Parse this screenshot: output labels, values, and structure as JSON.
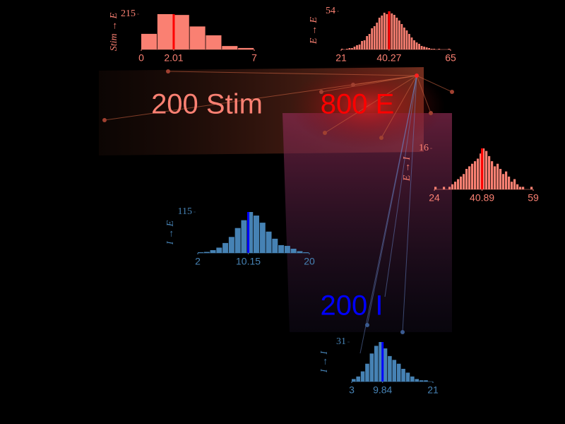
{
  "network": {
    "labels": [
      "200 Stim",
      "800 E",
      "200 I"
    ]
  },
  "chart_data": [
    {
      "type": "histogram",
      "ylabel": "Stim → E",
      "color": "#fa8072",
      "mean_color": "#ff0000",
      "bins": [
        0,
        1,
        2,
        3,
        4,
        5,
        6,
        7
      ],
      "counts": [
        95,
        215,
        210,
        140,
        86,
        21,
        9
      ],
      "mean": 2.01,
      "xlim": [
        0,
        7
      ],
      "xticks": [
        0,
        2.01,
        7
      ],
      "ylim": [
        0,
        215
      ],
      "yticks": [
        215
      ]
    },
    {
      "type": "histogram",
      "ylabel": "E → E",
      "color": "#fa8072",
      "mean_color": "#ff0000",
      "bins": [
        21,
        22,
        23,
        24,
        25,
        26,
        27,
        28,
        29,
        30,
        31,
        32,
        33,
        34,
        35,
        36,
        37,
        38,
        39,
        40,
        41,
        42,
        43,
        44,
        45,
        46,
        47,
        48,
        49,
        50,
        51,
        52,
        53,
        54,
        55,
        56,
        57,
        58,
        59,
        60,
        61,
        62,
        63,
        64,
        65
      ],
      "counts": [
        1,
        0,
        1,
        2,
        2,
        4,
        6,
        7,
        12,
        13,
        19,
        22,
        30,
        33,
        38,
        45,
        48,
        52,
        50,
        54,
        51,
        49,
        45,
        41,
        36,
        31,
        27,
        22,
        17,
        13,
        10,
        8,
        5,
        4,
        3,
        2,
        1,
        1,
        0,
        1,
        0,
        0,
        0,
        1
      ],
      "mean": 40.27,
      "xlim": [
        21,
        65
      ],
      "xticks": [
        21,
        40.27,
        65
      ],
      "ylim": [
        0,
        54
      ],
      "yticks": [
        54
      ]
    },
    {
      "type": "histogram",
      "ylabel": "E → I",
      "color": "#fa8072",
      "mean_color": "#ff0000",
      "bins": [
        24,
        25,
        26,
        27,
        28,
        29,
        30,
        31,
        32,
        33,
        34,
        35,
        36,
        37,
        38,
        39,
        40,
        41,
        42,
        43,
        44,
        45,
        46,
        47,
        48,
        49,
        50,
        51,
        52,
        53,
        54,
        55,
        56,
        57,
        58,
        59
      ],
      "counts": [
        1,
        0,
        0,
        1,
        0,
        1,
        2,
        3,
        4,
        5,
        6,
        8,
        9,
        10,
        11,
        12,
        14,
        16,
        15,
        13,
        11,
        9,
        10,
        8,
        6,
        7,
        5,
        3,
        4,
        2,
        1,
        1,
        0,
        0,
        1
      ],
      "mean": 40.89,
      "xlim": [
        24,
        59
      ],
      "xticks": [
        24,
        40.89,
        59
      ],
      "ylim": [
        0,
        16
      ],
      "yticks": [
        16
      ]
    },
    {
      "type": "histogram",
      "ylabel": "I → E",
      "color": "#4682b4",
      "mean_color": "#0000ff",
      "bins": [
        2,
        3,
        4,
        5,
        6,
        7,
        8,
        9,
        10,
        11,
        12,
        13,
        14,
        15,
        16,
        17,
        18,
        19,
        20
      ],
      "counts": [
        2,
        3,
        8,
        15,
        28,
        45,
        70,
        92,
        115,
        105,
        85,
        60,
        40,
        22,
        20,
        12,
        5,
        2
      ],
      "mean": 10.15,
      "xlim": [
        2,
        20
      ],
      "xticks": [
        2,
        10.15,
        20
      ],
      "ylim": [
        0,
        115
      ],
      "yticks": [
        115
      ]
    },
    {
      "type": "histogram",
      "ylabel": "I → I",
      "color": "#4682b4",
      "mean_color": "#0000ff",
      "bins": [
        3,
        4,
        5,
        6,
        7,
        8,
        9,
        10,
        11,
        12,
        13,
        14,
        15,
        16,
        17,
        18,
        19,
        20,
        21
      ],
      "counts": [
        2,
        4,
        8,
        14,
        22,
        28,
        31,
        26,
        20,
        17,
        14,
        10,
        7,
        4,
        2,
        1,
        1,
        0
      ],
      "mean": 9.84,
      "xlim": [
        3,
        21
      ],
      "xticks": [
        3,
        9.84,
        21
      ],
      "ylim": [
        0,
        31
      ],
      "yticks": [
        31
      ]
    }
  ]
}
